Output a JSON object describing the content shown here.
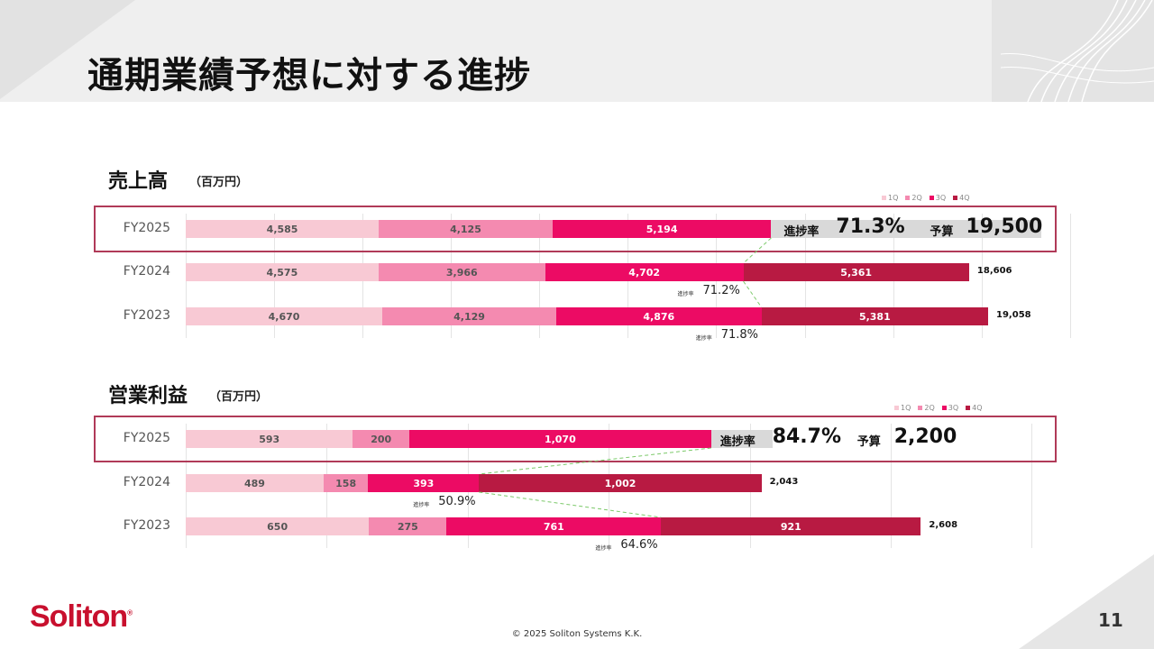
{
  "page": {
    "title": "通期業績予想に対する進捗",
    "page_number": "11",
    "copyright": "© 2025 Soliton Systems K.K."
  },
  "logo": {
    "text": "Soliton",
    "mark": "®"
  },
  "colors": {
    "q1": "#f8c9d4",
    "q2": "#f48ab0",
    "q3": "#ec0b64",
    "q4": "#b81a42",
    "highlight": "#b03a58",
    "brand": "#c8102e"
  },
  "chart_data": [
    {
      "type": "bar",
      "orientation": "horizontal-stacked",
      "title": "売上高",
      "unit": "（百万円）",
      "legend": [
        "1Q",
        "2Q",
        "3Q",
        "4Q"
      ],
      "xlim": [
        0,
        21000
      ],
      "rows": [
        {
          "year": "FY2025",
          "values": [
            4585,
            4125,
            5194
          ],
          "labels": [
            "4,585",
            "4,125",
            "5,194"
          ],
          "highlight": true,
          "progress_label": "進捗率",
          "progress": "71.3%",
          "budget_label": "予算",
          "budget": "19,500"
        },
        {
          "year": "FY2024",
          "values": [
            4575,
            3966,
            4702,
            5361
          ],
          "labels": [
            "4,575",
            "3,966",
            "4,702",
            "5,361"
          ],
          "total": "18,606",
          "rate_label": "進捗率",
          "rate": "71.2%"
        },
        {
          "year": "FY2023",
          "values": [
            4670,
            4129,
            4876,
            5381
          ],
          "labels": [
            "4,670",
            "4,129",
            "4,876",
            "5,381"
          ],
          "total": "19,058",
          "rate_label": "進捗率",
          "rate": "71.8%"
        }
      ]
    },
    {
      "type": "bar",
      "orientation": "horizontal-stacked",
      "title": "営業利益",
      "unit": "（百万円）",
      "legend": [
        "1Q",
        "2Q",
        "3Q",
        "4Q"
      ],
      "xlim": [
        0,
        3000
      ],
      "rows": [
        {
          "year": "FY2025",
          "values": [
            593,
            200,
            1070
          ],
          "labels": [
            "593",
            "200",
            "1,070"
          ],
          "highlight": true,
          "progress_label": "進捗率",
          "progress": "84.7%",
          "budget_label": "予算",
          "budget": "2,200"
        },
        {
          "year": "FY2024",
          "values": [
            489,
            158,
            393,
            1002
          ],
          "labels": [
            "489",
            "158",
            "393",
            "1,002"
          ],
          "total": "2,043",
          "rate_label": "進捗率",
          "rate": "50.9%"
        },
        {
          "year": "FY2023",
          "values": [
            650,
            275,
            761,
            921
          ],
          "labels": [
            "650",
            "275",
            "761",
            "921"
          ],
          "total": "2,608",
          "rate_label": "進捗率",
          "rate": "64.6%"
        }
      ]
    }
  ]
}
